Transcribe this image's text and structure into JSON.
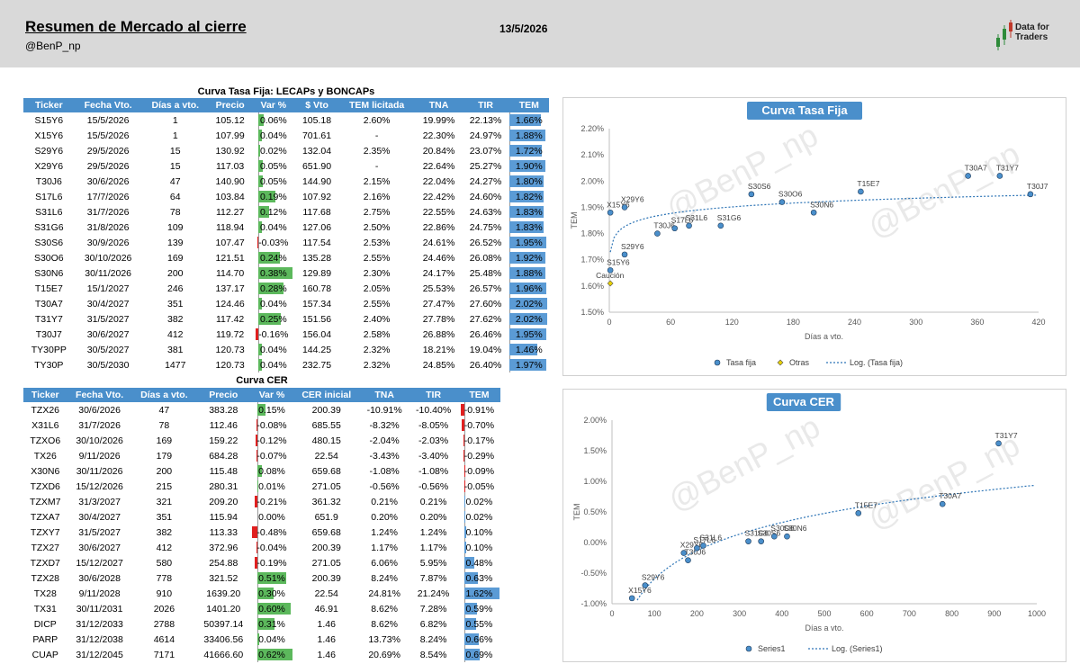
{
  "header": {
    "title": "Resumen de Mercado al cierre",
    "handle": "@BenP_np",
    "date": "13/5/2026",
    "logo_text_1": "Data for",
    "logo_text_2": "Traders"
  },
  "watermark": "@BenP_np",
  "fija_table": {
    "title": "Curva Tasa Fija: LECAPs y BONCAPs",
    "headers": [
      "Ticker",
      "Fecha Vto.",
      "Días a vto.",
      "Precio",
      "Var %",
      "$ Vto",
      "TEM licitada",
      "TNA",
      "TIR",
      "TEM"
    ],
    "rows": [
      {
        "ticker": "S15Y6",
        "fecha": "15/5/2026",
        "dias": "1",
        "precio": "105.12",
        "var": "0.06%",
        "var_v": 0.06,
        "vto": "105.18",
        "teml": "2.60%",
        "tna": "19.99%",
        "tir": "22.13%",
        "tem": "1.66%",
        "tem_v": 1.66
      },
      {
        "ticker": "X15Y6",
        "fecha": "15/5/2026",
        "dias": "1",
        "precio": "107.99",
        "var": "0.04%",
        "var_v": 0.04,
        "vto": "701.61",
        "teml": "-",
        "tna": "22.30%",
        "tir": "24.97%",
        "tem": "1.88%",
        "tem_v": 1.88
      },
      {
        "ticker": "S29Y6",
        "fecha": "29/5/2026",
        "dias": "15",
        "precio": "130.92",
        "var": "0.02%",
        "var_v": 0.02,
        "vto": "132.04",
        "teml": "2.35%",
        "tna": "20.84%",
        "tir": "23.07%",
        "tem": "1.72%",
        "tem_v": 1.72
      },
      {
        "ticker": "X29Y6",
        "fecha": "29/5/2026",
        "dias": "15",
        "precio": "117.03",
        "var": "0.05%",
        "var_v": 0.05,
        "vto": "651.90",
        "teml": "-",
        "tna": "22.64%",
        "tir": "25.27%",
        "tem": "1.90%",
        "tem_v": 1.9
      },
      {
        "ticker": "T30J6",
        "fecha": "30/6/2026",
        "dias": "47",
        "precio": "140.90",
        "var": "0.05%",
        "var_v": 0.05,
        "vto": "144.90",
        "teml": "2.15%",
        "tna": "22.04%",
        "tir": "24.27%",
        "tem": "1.80%",
        "tem_v": 1.8
      },
      {
        "ticker": "S17L6",
        "fecha": "17/7/2026",
        "dias": "64",
        "precio": "103.84",
        "var": "0.19%",
        "var_v": 0.19,
        "vto": "107.92",
        "teml": "2.16%",
        "tna": "22.42%",
        "tir": "24.60%",
        "tem": "1.82%",
        "tem_v": 1.82
      },
      {
        "ticker": "S31L6",
        "fecha": "31/7/2026",
        "dias": "78",
        "precio": "112.27",
        "var": "0.12%",
        "var_v": 0.12,
        "vto": "117.68",
        "teml": "2.75%",
        "tna": "22.55%",
        "tir": "24.63%",
        "tem": "1.83%",
        "tem_v": 1.83
      },
      {
        "ticker": "S31G6",
        "fecha": "31/8/2026",
        "dias": "109",
        "precio": "118.94",
        "var": "0.04%",
        "var_v": 0.04,
        "vto": "127.06",
        "teml": "2.50%",
        "tna": "22.86%",
        "tir": "24.75%",
        "tem": "1.83%",
        "tem_v": 1.83
      },
      {
        "ticker": "S30S6",
        "fecha": "30/9/2026",
        "dias": "139",
        "precio": "107.47",
        "var": "-0.03%",
        "var_v": -0.03,
        "vto": "117.54",
        "teml": "2.53%",
        "tna": "24.61%",
        "tir": "26.52%",
        "tem": "1.95%",
        "tem_v": 1.95
      },
      {
        "ticker": "S30O6",
        "fecha": "30/10/2026",
        "dias": "169",
        "precio": "121.51",
        "var": "0.24%",
        "var_v": 0.24,
        "vto": "135.28",
        "teml": "2.55%",
        "tna": "24.46%",
        "tir": "26.08%",
        "tem": "1.92%",
        "tem_v": 1.92
      },
      {
        "ticker": "S30N6",
        "fecha": "30/11/2026",
        "dias": "200",
        "precio": "114.70",
        "var": "0.38%",
        "var_v": 0.38,
        "vto": "129.89",
        "teml": "2.30%",
        "tna": "24.17%",
        "tir": "25.48%",
        "tem": "1.88%",
        "tem_v": 1.88
      },
      {
        "ticker": "T15E7",
        "fecha": "15/1/2027",
        "dias": "246",
        "precio": "137.17",
        "var": "0.28%",
        "var_v": 0.28,
        "vto": "160.78",
        "teml": "2.05%",
        "tna": "25.53%",
        "tir": "26.57%",
        "tem": "1.96%",
        "tem_v": 1.96
      },
      {
        "ticker": "T30A7",
        "fecha": "30/4/2027",
        "dias": "351",
        "precio": "124.46",
        "var": "0.04%",
        "var_v": 0.04,
        "vto": "157.34",
        "teml": "2.55%",
        "tna": "27.47%",
        "tir": "27.60%",
        "tem": "2.02%",
        "tem_v": 2.02
      },
      {
        "ticker": "T31Y7",
        "fecha": "31/5/2027",
        "dias": "382",
        "precio": "117.42",
        "var": "0.25%",
        "var_v": 0.25,
        "vto": "151.56",
        "teml": "2.40%",
        "tna": "27.78%",
        "tir": "27.62%",
        "tem": "2.02%",
        "tem_v": 2.02
      },
      {
        "ticker": "T30J7",
        "fecha": "30/6/2027",
        "dias": "412",
        "precio": "119.72",
        "var": "-0.16%",
        "var_v": -0.16,
        "vto": "156.04",
        "teml": "2.58%",
        "tna": "26.88%",
        "tir": "26.46%",
        "tem": "1.95%",
        "tem_v": 1.95
      },
      {
        "ticker": "TY30PP",
        "fecha": "30/5/2027",
        "dias": "381",
        "precio": "120.73",
        "var": "0.04%",
        "var_v": 0.04,
        "vto": "144.25",
        "teml": "2.32%",
        "tna": "18.21%",
        "tir": "19.04%",
        "tem": "1.46%",
        "tem_v": 1.46
      },
      {
        "ticker": "TY30P",
        "fecha": "30/5/2030",
        "dias": "1477",
        "precio": "120.73",
        "var": "0.04%",
        "var_v": 0.04,
        "vto": "232.75",
        "teml": "2.32%",
        "tna": "24.85%",
        "tir": "26.40%",
        "tem": "1.97%",
        "tem_v": 1.97
      }
    ]
  },
  "cer_table": {
    "title": "Curva CER",
    "headers": [
      "Ticker",
      "Fecha Vto.",
      "Días a vto.",
      "Precio",
      "Var %",
      "CER inicial",
      "TNA",
      "TIR",
      "TEM"
    ],
    "rows": [
      {
        "ticker": "TZX26",
        "fecha": "30/6/2026",
        "dias": "47",
        "precio": "383.28",
        "var": "0.15%",
        "var_v": 0.15,
        "cer": "200.39",
        "tna": "-10.91%",
        "tir": "-10.40%",
        "tem": "-0.91%",
        "tem_v": -0.91
      },
      {
        "ticker": "X31L6",
        "fecha": "31/7/2026",
        "dias": "78",
        "precio": "112.46",
        "var": "-0.08%",
        "var_v": -0.08,
        "cer": "685.55",
        "tna": "-8.32%",
        "tir": "-8.05%",
        "tem": "-0.70%",
        "tem_v": -0.7
      },
      {
        "ticker": "TZXO6",
        "fecha": "30/10/2026",
        "dias": "169",
        "precio": "159.22",
        "var": "-0.12%",
        "var_v": -0.12,
        "cer": "480.15",
        "tna": "-2.04%",
        "tir": "-2.03%",
        "tem": "-0.17%",
        "tem_v": -0.17
      },
      {
        "ticker": "TX26",
        "fecha": "9/11/2026",
        "dias": "179",
        "precio": "684.28",
        "var": "-0.07%",
        "var_v": -0.07,
        "cer": "22.54",
        "tna": "-3.43%",
        "tir": "-3.40%",
        "tem": "-0.29%",
        "tem_v": -0.29
      },
      {
        "ticker": "X30N6",
        "fecha": "30/11/2026",
        "dias": "200",
        "precio": "115.48",
        "var": "0.08%",
        "var_v": 0.08,
        "cer": "659.68",
        "tna": "-1.08%",
        "tir": "-1.08%",
        "tem": "-0.09%",
        "tem_v": -0.09
      },
      {
        "ticker": "TZXD6",
        "fecha": "15/12/2026",
        "dias": "215",
        "precio": "280.31",
        "var": "0.01%",
        "var_v": 0.01,
        "cer": "271.05",
        "tna": "-0.56%",
        "tir": "-0.56%",
        "tem": "-0.05%",
        "tem_v": -0.05
      },
      {
        "ticker": "TZXM7",
        "fecha": "31/3/2027",
        "dias": "321",
        "precio": "209.20",
        "var": "-0.21%",
        "var_v": -0.21,
        "cer": "361.32",
        "tna": "0.21%",
        "tir": "0.21%",
        "tem": "0.02%",
        "tem_v": 0.02
      },
      {
        "ticker": "TZXA7",
        "fecha": "30/4/2027",
        "dias": "351",
        "precio": "115.94",
        "var": "0.00%",
        "var_v": 0.0,
        "cer": "651.9",
        "tna": "0.20%",
        "tir": "0.20%",
        "tem": "0.02%",
        "tem_v": 0.02
      },
      {
        "ticker": "TZXY7",
        "fecha": "31/5/2027",
        "dias": "382",
        "precio": "113.33",
        "var": "-0.48%",
        "var_v": -0.48,
        "cer": "659.68",
        "tna": "1.24%",
        "tir": "1.24%",
        "tem": "0.10%",
        "tem_v": 0.1
      },
      {
        "ticker": "TZX27",
        "fecha": "30/6/2027",
        "dias": "412",
        "precio": "372.96",
        "var": "-0.04%",
        "var_v": -0.04,
        "cer": "200.39",
        "tna": "1.17%",
        "tir": "1.17%",
        "tem": "0.10%",
        "tem_v": 0.1
      },
      {
        "ticker": "TZXD7",
        "fecha": "15/12/2027",
        "dias": "580",
        "precio": "254.88",
        "var": "-0.19%",
        "var_v": -0.19,
        "cer": "271.05",
        "tna": "6.06%",
        "tir": "5.95%",
        "tem": "0.48%",
        "tem_v": 0.48
      },
      {
        "ticker": "TZX28",
        "fecha": "30/6/2028",
        "dias": "778",
        "precio": "321.52",
        "var": "0.51%",
        "var_v": 0.51,
        "cer": "200.39",
        "tna": "8.24%",
        "tir": "7.87%",
        "tem": "0.63%",
        "tem_v": 0.63
      },
      {
        "ticker": "TX28",
        "fecha": "9/11/2028",
        "dias": "910",
        "precio": "1639.20",
        "var": "0.30%",
        "var_v": 0.3,
        "cer": "22.54",
        "tna": "24.81%",
        "tir": "21.24%",
        "tem": "1.62%",
        "tem_v": 1.62
      },
      {
        "ticker": "TX31",
        "fecha": "30/11/2031",
        "dias": "2026",
        "precio": "1401.20",
        "var": "0.60%",
        "var_v": 0.6,
        "cer": "46.91",
        "tna": "8.62%",
        "tir": "7.28%",
        "tem": "0.59%",
        "tem_v": 0.59
      },
      {
        "ticker": "DICP",
        "fecha": "31/12/2033",
        "dias": "2788",
        "precio": "50397.14",
        "var": "0.31%",
        "var_v": 0.31,
        "cer": "1.46",
        "tna": "8.62%",
        "tir": "6.82%",
        "tem": "0.55%",
        "tem_v": 0.55
      },
      {
        "ticker": "PARP",
        "fecha": "31/12/2038",
        "dias": "4614",
        "precio": "33406.56",
        "var": "0.04%",
        "var_v": 0.04,
        "cer": "1.46",
        "tna": "13.73%",
        "tir": "8.24%",
        "tem": "0.66%",
        "tem_v": 0.66
      },
      {
        "ticker": "CUAP",
        "fecha": "31/12/2045",
        "dias": "7171",
        "precio": "41666.60",
        "var": "0.62%",
        "var_v": 0.62,
        "cer": "1.46",
        "tna": "20.69%",
        "tir": "8.54%",
        "tem": "0.69%",
        "tem_v": 0.69
      }
    ]
  },
  "colors": {
    "header_blue": "#4a8fcb",
    "pos_bar": "#5cb85c",
    "neg_bar": "#e02020",
    "tem_bar": "#5b9bd5",
    "marker": "#4a8fcb",
    "otras": "#e8d000"
  },
  "chart_data": [
    {
      "type": "scatter",
      "title": "Curva Tasa Fija",
      "xlabel": "Días a vto.",
      "ylabel": "TEM",
      "xlim": [
        0,
        420
      ],
      "ylim": [
        1.5,
        2.2
      ],
      "xticks": [
        "0",
        "60",
        "120",
        "180",
        "240",
        "300",
        "360",
        "420"
      ],
      "yticks": [
        "1.50%",
        "1.60%",
        "1.70%",
        "1.80%",
        "1.90%",
        "2.00%",
        "2.10%",
        "2.20%"
      ],
      "legend_position": "bottom",
      "series": [
        {
          "name": "Tasa fija",
          "points": [
            {
              "x": 1,
              "y": 1.66,
              "label": "S15Y6"
            },
            {
              "x": 1,
              "y": 1.88,
              "label": "X15Y6"
            },
            {
              "x": 15,
              "y": 1.72,
              "label": "S29Y6"
            },
            {
              "x": 15,
              "y": 1.9,
              "label": "X29Y6"
            },
            {
              "x": 47,
              "y": 1.8,
              "label": "T30J6"
            },
            {
              "x": 64,
              "y": 1.82,
              "label": "S17L6"
            },
            {
              "x": 78,
              "y": 1.83,
              "label": "S31L6"
            },
            {
              "x": 109,
              "y": 1.83,
              "label": "S31G6"
            },
            {
              "x": 139,
              "y": 1.95,
              "label": "S30S6"
            },
            {
              "x": 169,
              "y": 1.92,
              "label": "S30O6"
            },
            {
              "x": 200,
              "y": 1.88,
              "label": "S30N6"
            },
            {
              "x": 246,
              "y": 1.96,
              "label": "T15E7"
            },
            {
              "x": 351,
              "y": 2.02,
              "label": "T30A7"
            },
            {
              "x": 382,
              "y": 2.02,
              "label": "T31Y7"
            },
            {
              "x": 412,
              "y": 1.95,
              "label": "T30J7"
            }
          ]
        },
        {
          "name": "Otras",
          "points": [
            {
              "x": 1,
              "y": 1.61,
              "label": "Caución"
            }
          ]
        },
        {
          "name": "Log. (Tasa fija)",
          "trend": "log"
        }
      ]
    },
    {
      "type": "scatter",
      "title": "Curva CER",
      "xlabel": "Días a vto.",
      "ylabel": "TEM",
      "xlim": [
        0,
        1000
      ],
      "ylim": [
        -1.0,
        2.0
      ],
      "xticks": [
        "0",
        "100",
        "200",
        "300",
        "400",
        "500",
        "600",
        "700",
        "800",
        "900",
        "1000"
      ],
      "yticks": [
        "-1.00%",
        "-0.50%",
        "0.00%",
        "0.50%",
        "1.00%",
        "1.50%",
        "2.00%"
      ],
      "legend_position": "bottom",
      "series": [
        {
          "name": "Series1",
          "points": [
            {
              "x": 47,
              "y": -0.91,
              "label": "X15Y6"
            },
            {
              "x": 78,
              "y": -0.7,
              "label": "S29Y6"
            },
            {
              "x": 169,
              "y": -0.17,
              "label": "X29Y6"
            },
            {
              "x": 179,
              "y": -0.29,
              "label": "T30J6"
            },
            {
              "x": 200,
              "y": -0.09,
              "label": "S17L6"
            },
            {
              "x": 215,
              "y": -0.05,
              "label": "S31L6"
            },
            {
              "x": 321,
              "y": 0.02,
              "label": "S31G6"
            },
            {
              "x": 351,
              "y": 0.02,
              "label": "S30S6"
            },
            {
              "x": 382,
              "y": 0.1,
              "label": "S30O6"
            },
            {
              "x": 412,
              "y": 0.1,
              "label": "S30N6"
            },
            {
              "x": 580,
              "y": 0.48,
              "label": "T15E7"
            },
            {
              "x": 778,
              "y": 0.63,
              "label": "T30A7"
            },
            {
              "x": 910,
              "y": 1.62,
              "label": "T31Y7"
            }
          ]
        },
        {
          "name": "Log. (Series1)",
          "trend": "log"
        }
      ]
    }
  ]
}
